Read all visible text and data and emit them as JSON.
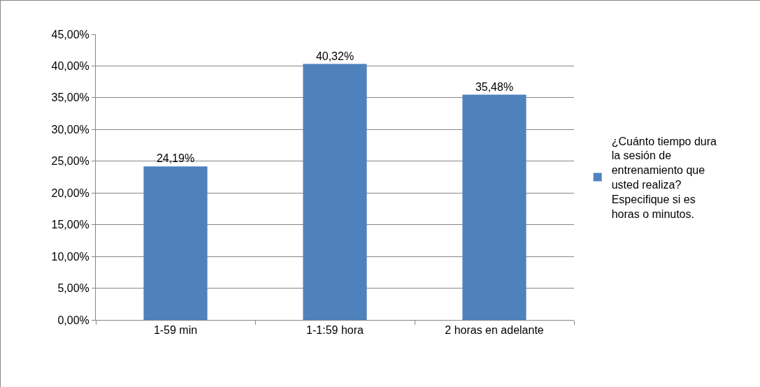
{
  "chart_data": {
    "type": "bar",
    "categories": [
      "1-59 min",
      "1-1:59 hora",
      "2 horas en adelante"
    ],
    "series": [
      {
        "name": "¿Cuánto tiempo dura la sesión de entrenamiento que usted realiza? Especifique si es horas o minutos.",
        "color": "#4f81bd",
        "values": [
          24.19,
          40.32,
          35.48
        ],
        "value_labels": [
          "24,19%",
          "40,32%",
          "35,48%"
        ]
      }
    ],
    "ylim": [
      0,
      45
    ],
    "yticks": [
      {
        "value": 0,
        "label": "0,00%"
      },
      {
        "value": 5,
        "label": "5,00%"
      },
      {
        "value": 10,
        "label": "10,00%"
      },
      {
        "value": 15,
        "label": "15,00%"
      },
      {
        "value": 20,
        "label": "20,00%"
      },
      {
        "value": 25,
        "label": "25,00%"
      },
      {
        "value": 30,
        "label": "30,00%"
      },
      {
        "value": 35,
        "label": "35,00%"
      },
      {
        "value": 40,
        "label": "40,00%"
      },
      {
        "value": 45,
        "label": "45,00%"
      }
    ],
    "grid": "y",
    "legend": "right"
  }
}
